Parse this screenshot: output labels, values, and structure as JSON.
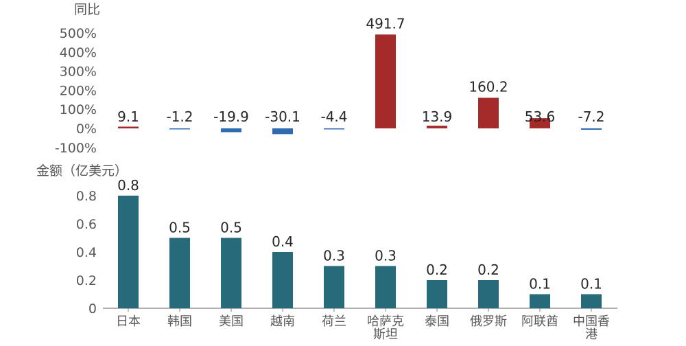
{
  "chart_data": [
    {
      "type": "bar",
      "ylabel": "同比",
      "categories": [
        "日本",
        "韩国",
        "美国",
        "越南",
        "荷兰",
        "哈萨克斯坦",
        "泰国",
        "俄罗斯",
        "阿联酋",
        "中国香港"
      ],
      "values": [
        9.1,
        -1.2,
        -19.9,
        -30.1,
        -4.4,
        491.7,
        13.9,
        160.2,
        53.6,
        -7.2
      ],
      "data_labels": [
        "9.1",
        "-1.2",
        "-19.9",
        "-30.1",
        "-4.4",
        "491.7",
        "13.9",
        "160.2",
        "53.6",
        "-7.2"
      ],
      "ylim": [
        -100,
        500
      ],
      "yticks": [
        "500%",
        "400%",
        "300%",
        "200%",
        "100%",
        "0%",
        "-100%"
      ],
      "colors": {
        "positive": "#a52a2a",
        "negative": "#2e6bb0"
      },
      "grid": false
    },
    {
      "type": "bar",
      "ylabel": "金额（亿美元）",
      "categories": [
        "日本",
        "韩国",
        "美国",
        "越南",
        "荷兰",
        "哈萨克斯坦",
        "泰国",
        "俄罗斯",
        "阿联酋",
        "中国香港"
      ],
      "category_lines": [
        [
          "日本"
        ],
        [
          "韩国"
        ],
        [
          "美国"
        ],
        [
          "越南"
        ],
        [
          "荷兰"
        ],
        [
          "哈萨克",
          "斯坦"
        ],
        [
          "泰国"
        ],
        [
          "俄罗斯"
        ],
        [
          "阿联酋"
        ],
        [
          "中国香",
          "港"
        ]
      ],
      "values": [
        0.8,
        0.5,
        0.5,
        0.4,
        0.3,
        0.3,
        0.2,
        0.2,
        0.1,
        0.1
      ],
      "data_labels": [
        "0.8",
        "0.5",
        "0.5",
        "0.4",
        "0.3",
        "0.3",
        "0.2",
        "0.2",
        "0.1",
        "0.1"
      ],
      "ylim": [
        0,
        0.8
      ],
      "yticks": [
        "0.8",
        "0.6",
        "0.4",
        "0.2",
        "0"
      ],
      "colors": {
        "bar": "#276a7a"
      },
      "grid": false
    }
  ]
}
